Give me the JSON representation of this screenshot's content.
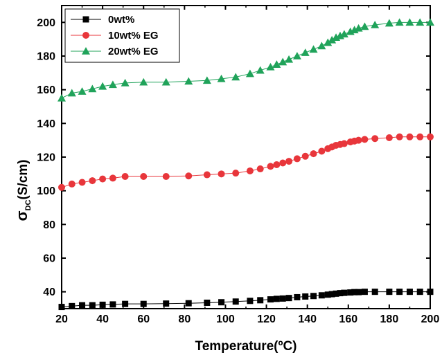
{
  "chart_data": {
    "type": "line",
    "title": "",
    "xlabel": "Temperature(ºC)",
    "ylabel": {
      "main": "σ",
      "sub": "DC",
      "rest": "(S/cm)"
    },
    "xlim": [
      20,
      200
    ],
    "ylim": [
      30,
      210
    ],
    "xticks": [
      20,
      40,
      60,
      80,
      100,
      120,
      140,
      160,
      180,
      200
    ],
    "yticks": [
      40,
      60,
      80,
      100,
      120,
      140,
      160,
      180,
      200
    ],
    "grid": false,
    "legend_position": "top-left",
    "series": [
      {
        "name": "0wt%",
        "color": "#000000",
        "marker": "square",
        "x": [
          20,
          25,
          30,
          35,
          40,
          45,
          51,
          60,
          71,
          82,
          91,
          98,
          105,
          112,
          117,
          122,
          125,
          128,
          131,
          135,
          139,
          143,
          147,
          150,
          152,
          154,
          156,
          158,
          161,
          163,
          165,
          168,
          173,
          180,
          185,
          190,
          195,
          200
        ],
        "y": [
          31,
          31.5,
          32,
          32,
          32.3,
          32.5,
          32.8,
          32.8,
          33,
          33.2,
          33.5,
          33.8,
          34.2,
          34.6,
          35,
          35.5,
          35.8,
          36,
          36.3,
          36.8,
          37.2,
          37.5,
          37.9,
          38.3,
          38.6,
          38.9,
          39.2,
          39.4,
          39.6,
          39.8,
          39.8,
          40,
          40,
          40,
          40,
          40,
          40,
          40
        ]
      },
      {
        "name": "10wt% EG",
        "color": "#e8363b",
        "marker": "circle",
        "x": [
          20,
          25,
          30,
          35,
          40,
          45,
          51,
          60,
          71,
          82,
          91,
          98,
          105,
          112,
          117,
          122,
          125,
          128,
          131,
          135,
          139,
          143,
          147,
          150,
          152,
          154,
          156,
          158,
          161,
          163,
          165,
          168,
          173,
          180,
          185,
          190,
          195,
          200
        ],
        "y": [
          102,
          104,
          105,
          106,
          107,
          107.5,
          108.5,
          108.5,
          108.5,
          108.8,
          109.5,
          110,
          110.5,
          111.8,
          113,
          114.5,
          115.5,
          116.5,
          117.5,
          119,
          120.5,
          122,
          123.5,
          125,
          126,
          127,
          127.5,
          128,
          129,
          129.5,
          130,
          130.5,
          131,
          131.5,
          132,
          132,
          132,
          132
        ]
      },
      {
        "name": "20wt% EG",
        "color": "#20a35a",
        "marker": "triangle",
        "x": [
          20,
          25,
          30,
          35,
          40,
          45,
          51,
          60,
          71,
          82,
          91,
          98,
          105,
          112,
          117,
          122,
          125,
          128,
          131,
          135,
          139,
          143,
          147,
          150,
          152,
          154,
          156,
          158,
          161,
          163,
          165,
          168,
          173,
          180,
          185,
          190,
          195,
          200
        ],
        "y": [
          155,
          158,
          159,
          160.5,
          162,
          163,
          164,
          164.5,
          164.5,
          165,
          165.5,
          166.5,
          167.5,
          169.5,
          171.5,
          173.5,
          175,
          176.5,
          178,
          180,
          182,
          184,
          186,
          188,
          189.5,
          191,
          192,
          193,
          194.5,
          195.5,
          196.5,
          197.5,
          198.5,
          199.5,
          200,
          200,
          200,
          200
        ]
      }
    ]
  }
}
